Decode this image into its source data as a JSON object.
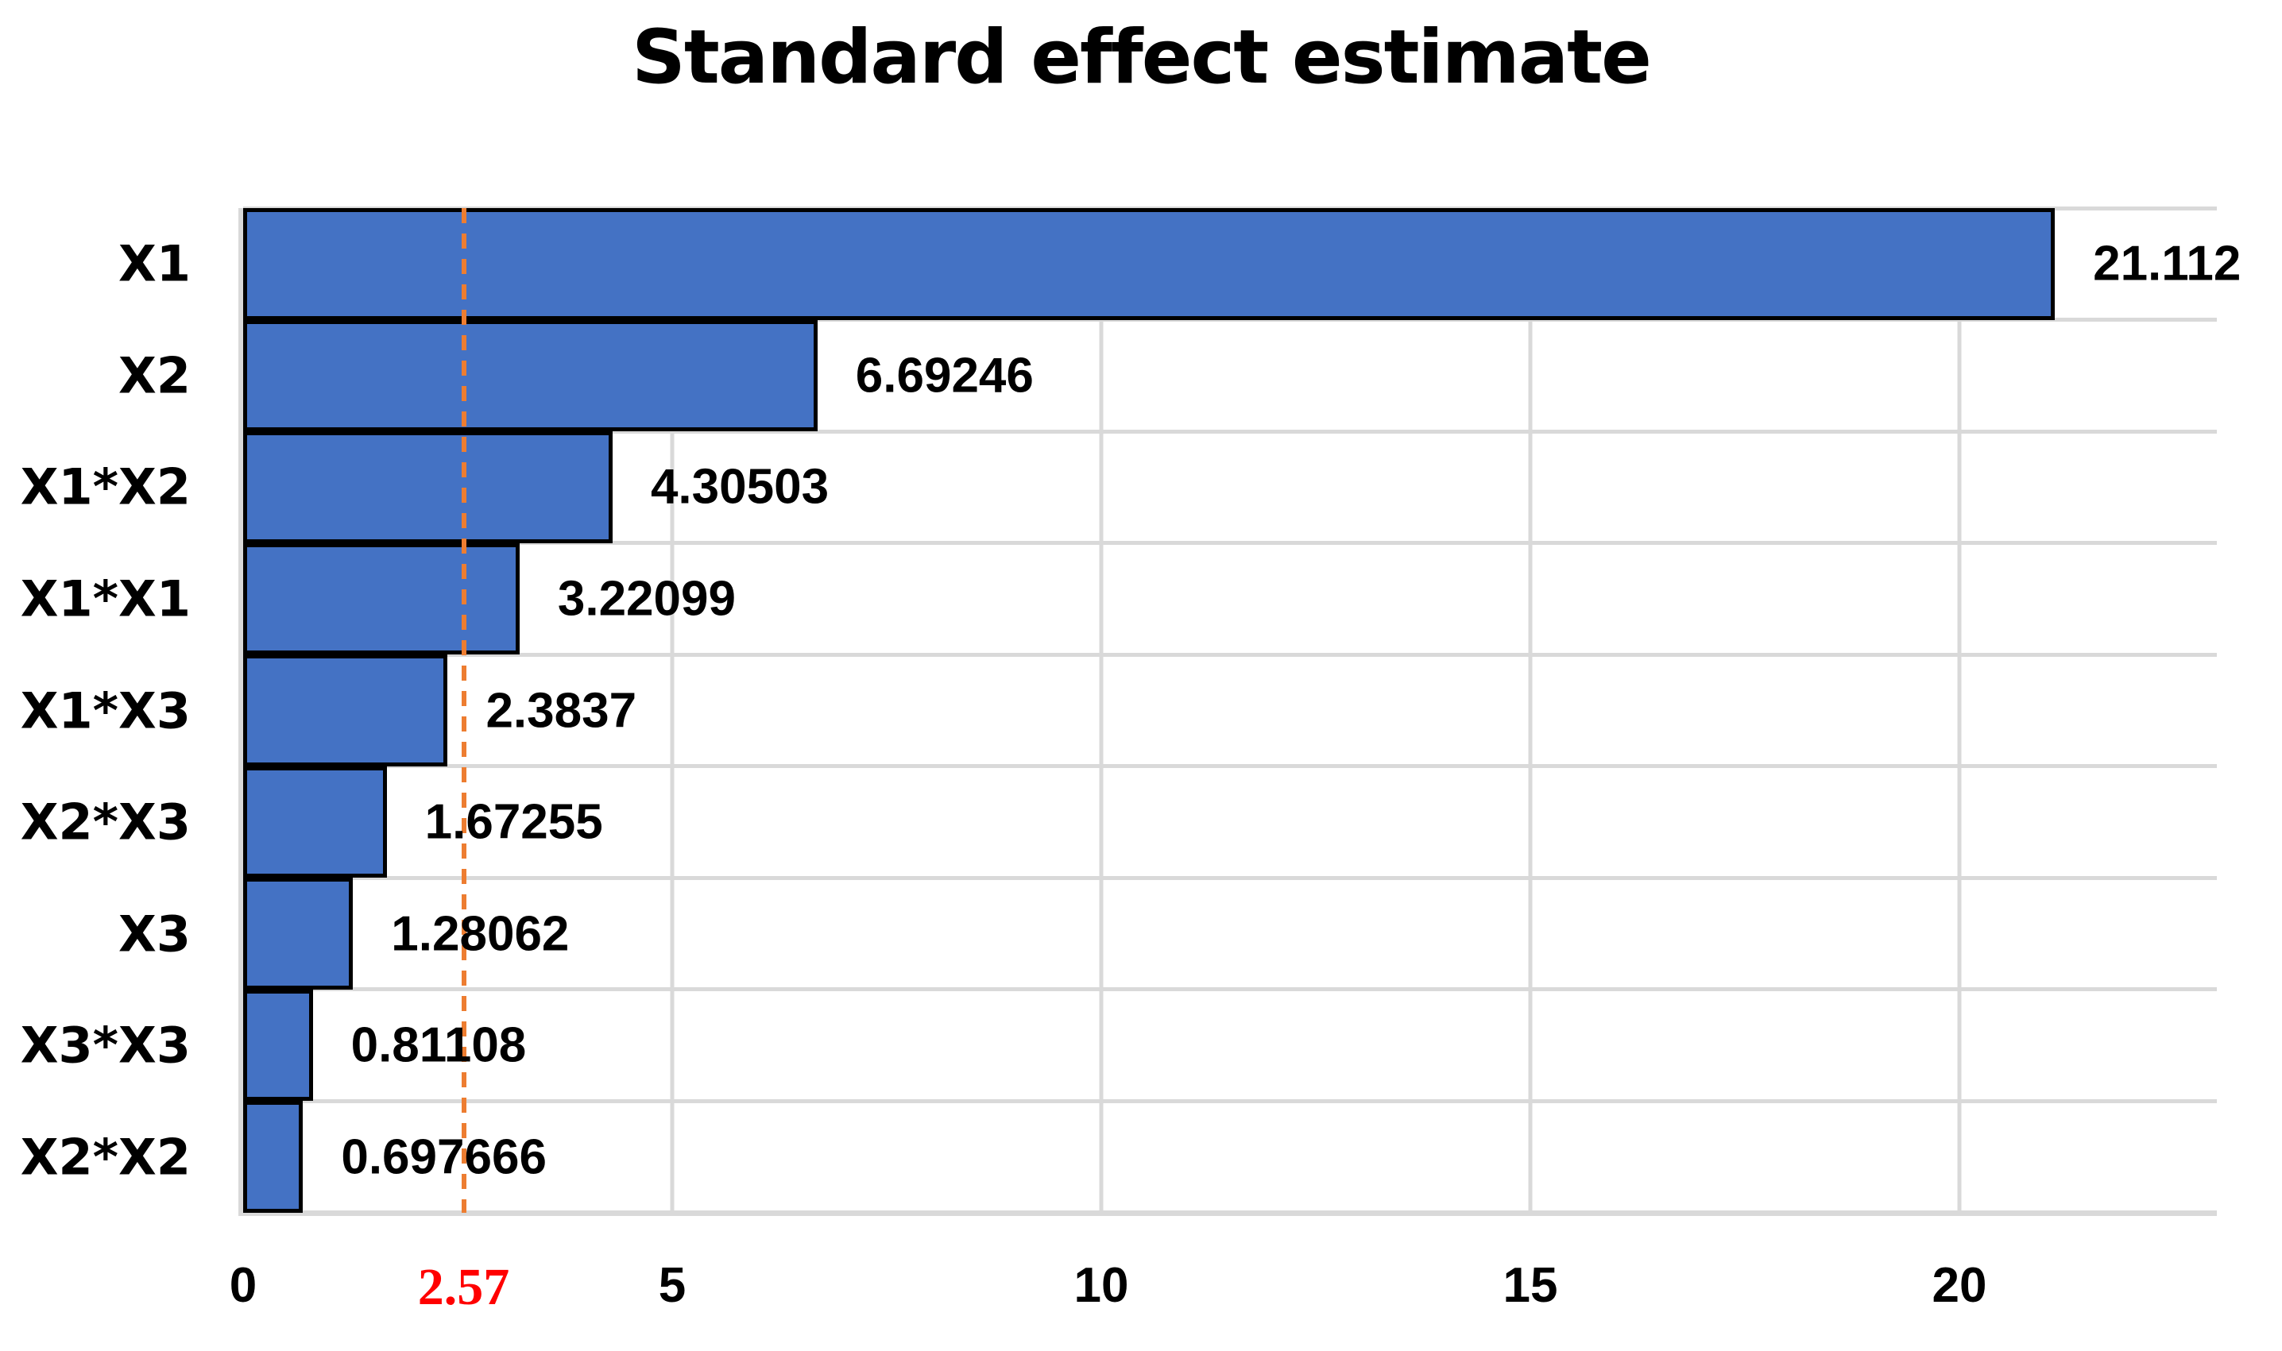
{
  "title": "Standard effect estimate",
  "chart_data": {
    "type": "bar",
    "orientation": "horizontal",
    "title": "Standard effect estimate",
    "categories": [
      "X1",
      "X2",
      "X1*X2",
      "X1*X1",
      "X1*X3",
      "X2*X3",
      "X3",
      "X3*X3",
      "X2*X2"
    ],
    "values": [
      21.112,
      6.69246,
      4.30503,
      3.22099,
      2.3837,
      1.67255,
      1.28062,
      0.81108,
      0.697666
    ],
    "value_labels": [
      "21.112",
      "6.69246",
      "4.30503",
      "3.22099",
      "2.3837",
      "1.67255",
      "1.28062",
      "0.81108",
      "0.697666"
    ],
    "xlabel": "",
    "ylabel": "",
    "xlim": [
      0,
      23
    ],
    "x_ticks": [
      0,
      5,
      10,
      15,
      20
    ],
    "x_tick_labels": [
      "0",
      "5",
      "10",
      "15",
      "20"
    ],
    "threshold": {
      "value": 2.57,
      "label": "2.57",
      "label_color": "#FF0000",
      "line_color": "#ED7D31",
      "line_style": "dashed"
    },
    "grid": true,
    "legend": "none",
    "colors": {
      "bar_fill": "#4472C4",
      "bar_border": "#000000",
      "gridline": "#D9D9D9",
      "text": "#000000"
    }
  }
}
